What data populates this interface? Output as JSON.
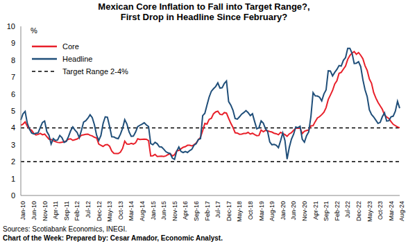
{
  "chart_data": {
    "type": "line",
    "title": "Mexican Core Inflation to Fall into Target Range?,",
    "subtitle": "First Drop in Headline Since February?",
    "y_label": "%",
    "notes": [
      "Sources: Scotiabank Economics, INEGI.",
      "Chart of the Week: Prepared by: Cesar Amador, Economic Analyst."
    ],
    "categories": [
      "Jan-10",
      null,
      null,
      null,
      null,
      "Jun-10",
      null,
      null,
      null,
      null,
      "Nov-10",
      null,
      null,
      null,
      null,
      "Apr-11",
      null,
      null,
      null,
      null,
      "Sep-11",
      null,
      null,
      null,
      null,
      "Feb-12",
      null,
      null,
      null,
      null,
      "Jul-12",
      null,
      null,
      null,
      null,
      "Dec-12",
      null,
      null,
      null,
      null,
      "May-13",
      null,
      null,
      null,
      null,
      "Oct-13",
      null,
      null,
      null,
      null,
      "Mar-14",
      null,
      null,
      null,
      null,
      "Aug-14",
      null,
      null,
      null,
      null,
      "Jan-15",
      null,
      null,
      null,
      null,
      "Jun-15",
      null,
      null,
      null,
      null,
      "Nov-15",
      null,
      null,
      null,
      null,
      "Apr-16",
      null,
      null,
      null,
      null,
      "Sep-16",
      null,
      null,
      null,
      null,
      "Feb-17",
      null,
      null,
      null,
      null,
      "Jul-17",
      null,
      null,
      null,
      null,
      "Dec-17",
      null,
      null,
      null,
      null,
      "May-18",
      null,
      null,
      null,
      null,
      "Oct-18",
      null,
      null,
      null,
      null,
      "Mar-19",
      null,
      null,
      null,
      null,
      "Aug-19",
      null,
      null,
      null,
      null,
      "Jan-20",
      null,
      null,
      null,
      null,
      "Jun-20",
      null,
      null,
      null,
      null,
      "Nov-20",
      null,
      null,
      null,
      null,
      "Apr-21",
      null,
      null,
      null,
      null,
      "Sep-21",
      null,
      null,
      null,
      null,
      "Feb-22",
      null,
      null,
      null,
      null,
      "Jul-22",
      null,
      null,
      null,
      null,
      "Dec-22",
      null,
      null,
      null,
      null,
      "May-23",
      null,
      null,
      null,
      null,
      "Oct-23",
      null,
      null,
      null,
      null,
      "Mar-24",
      null,
      null,
      null,
      null,
      "Aug-24"
    ],
    "series": [
      {
        "name": "Core",
        "color": "#e8202a",
        "values": [
          4.15,
          4.21,
          4.35,
          4.09,
          3.93,
          3.85,
          3.67,
          3.58,
          3.61,
          3.67,
          3.59,
          3.63,
          3.48,
          3.33,
          3.31,
          3.23,
          3.18,
          3.14,
          3.13,
          3.15,
          3.17,
          3.23,
          3.33,
          3.35,
          3.26,
          3.3,
          3.34,
          3.43,
          3.56,
          3.59,
          3.62,
          3.63,
          3.56,
          3.52,
          3.44,
          3.4,
          3.04,
          2.97,
          2.9,
          2.99,
          3.01,
          2.91,
          2.63,
          2.49,
          2.48,
          2.48,
          2.56,
          2.78,
          3.21,
          3.04,
          3.03,
          3.08,
          3.04,
          3.11,
          3.35,
          3.31,
          3.32,
          3.33,
          3.32,
          3.24,
          2.34,
          2.35,
          2.43,
          2.31,
          2.32,
          2.33,
          2.31,
          2.34,
          2.42,
          2.47,
          2.34,
          2.41,
          2.64,
          2.66,
          2.76,
          2.85,
          2.89,
          2.97,
          2.97,
          2.93,
          3.0,
          3.1,
          3.29,
          3.44,
          3.83,
          4.26,
          4.22,
          4.5,
          4.56,
          4.83,
          4.94,
          4.98,
          4.8,
          4.78,
          4.9,
          4.87,
          4.56,
          4.27,
          4.02,
          3.71,
          3.69,
          3.62,
          3.63,
          3.67,
          3.67,
          3.73,
          3.63,
          3.68,
          3.6,
          3.54,
          3.55,
          3.87,
          3.77,
          3.85,
          3.82,
          3.78,
          3.75,
          3.68,
          3.65,
          3.59,
          3.73,
          3.66,
          3.6,
          3.5,
          3.64,
          3.71,
          3.85,
          3.97,
          3.99,
          3.98,
          3.66,
          3.8,
          3.84,
          3.87,
          4.12,
          4.13,
          4.37,
          4.58,
          4.66,
          4.78,
          4.92,
          5.19,
          5.67,
          5.94,
          6.21,
          6.59,
          6.78,
          7.22,
          7.28,
          7.47,
          7.65,
          8.05,
          8.28,
          8.42,
          8.51,
          8.35,
          8.45,
          8.29,
          8.09,
          7.67,
          7.39,
          6.89,
          6.64,
          6.08,
          5.76,
          5.5,
          5.3,
          5.09,
          4.76,
          4.64,
          4.55,
          4.37,
          4.21,
          4.13,
          4.05,
          4.0
        ]
      },
      {
        "name": "Headline",
        "color": "#1f4e79",
        "values": [
          4.46,
          4.83,
          4.97,
          4.27,
          3.92,
          3.69,
          3.64,
          3.68,
          3.7,
          4.02,
          4.32,
          4.4,
          3.78,
          3.57,
          3.04,
          3.36,
          3.25,
          3.28,
          3.55,
          3.42,
          3.14,
          3.2,
          3.48,
          3.82,
          4.05,
          3.87,
          3.73,
          3.41,
          3.85,
          4.34,
          4.42,
          4.57,
          4.77,
          4.6,
          4.18,
          3.57,
          3.25,
          3.55,
          4.25,
          4.65,
          4.63,
          4.09,
          3.47,
          3.46,
          3.39,
          3.36,
          3.62,
          3.97,
          4.48,
          4.23,
          3.76,
          3.5,
          3.51,
          3.75,
          4.07,
          4.15,
          4.22,
          4.3,
          4.17,
          4.08,
          3.07,
          3.0,
          3.14,
          3.06,
          2.88,
          2.87,
          2.74,
          2.59,
          2.52,
          2.48,
          2.21,
          2.13,
          2.61,
          2.87,
          2.6,
          2.54,
          2.6,
          2.54,
          2.65,
          2.73,
          2.97,
          3.06,
          3.31,
          3.36,
          4.72,
          4.86,
          5.35,
          5.82,
          6.16,
          6.31,
          6.44,
          6.66,
          6.35,
          6.37,
          6.63,
          6.77,
          5.55,
          5.34,
          5.04,
          4.55,
          4.51,
          4.65,
          4.81,
          4.9,
          5.02,
          4.9,
          4.72,
          4.83,
          4.37,
          3.94,
          4.0,
          4.41,
          4.28,
          3.95,
          3.78,
          3.16,
          3.0,
          3.02,
          2.97,
          2.83,
          3.24,
          3.7,
          3.25,
          2.15,
          2.84,
          3.33,
          3.62,
          4.05,
          4.01,
          4.09,
          3.33,
          3.15,
          3.54,
          3.76,
          4.67,
          6.08,
          5.89,
          5.88,
          5.81,
          5.59,
          6.0,
          6.24,
          7.37,
          7.36,
          7.07,
          7.28,
          7.45,
          7.68,
          7.65,
          7.99,
          8.15,
          8.7,
          8.7,
          8.41,
          7.8,
          7.82,
          7.91,
          7.62,
          6.85,
          6.25,
          5.84,
          5.06,
          4.79,
          4.64,
          4.45,
          4.26,
          4.32,
          4.66,
          4.88,
          4.4,
          4.42,
          4.65,
          4.69,
          4.98,
          5.57,
          5.16
        ]
      }
    ],
    "reference_lines": {
      "name": "Target Range 2-4%",
      "values": [
        2,
        4
      ],
      "color": "#000000",
      "line_style": "dashed"
    },
    "ylim": [
      0,
      10
    ],
    "yticks": [
      0,
      1,
      2,
      3,
      4,
      5,
      6,
      7,
      8,
      9,
      10
    ],
    "grid": false,
    "legend": "upper left"
  }
}
